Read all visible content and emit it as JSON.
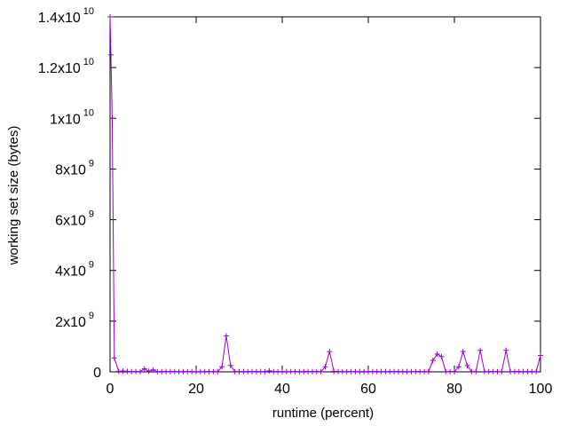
{
  "chart_data": {
    "type": "line",
    "xlabel": "runtime (percent)",
    "ylabel": "working set size (bytes)",
    "xlim": [
      0,
      100
    ],
    "ylim": [
      0,
      14000000000
    ],
    "x_ticks": [
      {
        "value": 0,
        "label": "0"
      },
      {
        "value": 20,
        "label": "20"
      },
      {
        "value": 40,
        "label": "40"
      },
      {
        "value": 60,
        "label": "60"
      },
      {
        "value": 80,
        "label": "80"
      },
      {
        "value": 100,
        "label": "100"
      }
    ],
    "y_ticks": [
      {
        "value": 0,
        "mantissa": "0",
        "exponent": ""
      },
      {
        "value": 2000000000,
        "mantissa": "2x10",
        "exponent": "9"
      },
      {
        "value": 4000000000,
        "mantissa": "4x10",
        "exponent": "9"
      },
      {
        "value": 6000000000,
        "mantissa": "6x10",
        "exponent": "9"
      },
      {
        "value": 8000000000,
        "mantissa": "8x10",
        "exponent": "9"
      },
      {
        "value": 10000000000,
        "mantissa": "1x10",
        "exponent": "10"
      },
      {
        "value": 12000000000,
        "mantissa": "1.2x10",
        "exponent": "10"
      },
      {
        "value": 14000000000,
        "mantissa": "1.4x10",
        "exponent": "10"
      }
    ],
    "grid": false,
    "legend": "none",
    "series_color": "#9400d3",
    "marker": "plus",
    "series": [
      {
        "x": [
          0,
          0.2,
          0.5,
          1,
          2,
          3,
          4,
          5,
          6,
          7,
          8,
          9,
          10,
          11,
          12,
          13,
          14,
          15,
          16,
          17,
          18,
          19,
          20,
          21,
          22,
          23,
          24,
          25,
          26,
          27,
          28,
          29,
          30,
          31,
          32,
          33,
          34,
          35,
          36,
          37,
          38,
          39,
          40,
          41,
          42,
          43,
          44,
          45,
          46,
          47,
          48,
          49,
          50,
          51,
          52,
          53,
          54,
          55,
          56,
          57,
          58,
          59,
          60,
          61,
          62,
          63,
          64,
          65,
          66,
          67,
          68,
          69,
          70,
          71,
          72,
          73,
          74,
          75,
          76,
          77,
          78,
          79,
          80,
          81,
          82,
          83,
          84,
          85,
          86,
          87,
          88,
          89,
          90,
          91,
          92,
          93,
          94,
          95,
          96,
          97,
          98,
          99,
          100
        ],
        "values": [
          14000000000,
          12500000000,
          10000000000,
          550000000,
          20000000,
          30000000,
          20000000,
          10000000,
          10000000,
          10000000,
          120000000,
          20000000,
          80000000,
          10000000,
          10000000,
          10000000,
          10000000,
          10000000,
          10000000,
          10000000,
          10000000,
          10000000,
          10000000,
          10000000,
          10000000,
          10000000,
          10000000,
          10000000,
          200000000,
          1420000000,
          250000000,
          10000000,
          10000000,
          10000000,
          10000000,
          10000000,
          10000000,
          10000000,
          10000000,
          40000000,
          10000000,
          10000000,
          10000000,
          10000000,
          10000000,
          10000000,
          10000000,
          10000000,
          10000000,
          10000000,
          10000000,
          10000000,
          200000000,
          800000000,
          20000000,
          10000000,
          10000000,
          10000000,
          10000000,
          10000000,
          10000000,
          10000000,
          10000000,
          10000000,
          10000000,
          10000000,
          10000000,
          10000000,
          10000000,
          10000000,
          10000000,
          10000000,
          10000000,
          10000000,
          10000000,
          10000000,
          10000000,
          450000000,
          700000000,
          600000000,
          10000000,
          10000000,
          10000000,
          200000000,
          800000000,
          250000000,
          10000000,
          10000000,
          850000000,
          10000000,
          10000000,
          10000000,
          10000000,
          10000000,
          850000000,
          10000000,
          10000000,
          10000000,
          10000000,
          10000000,
          10000000,
          10000000,
          650000000
        ]
      }
    ]
  }
}
